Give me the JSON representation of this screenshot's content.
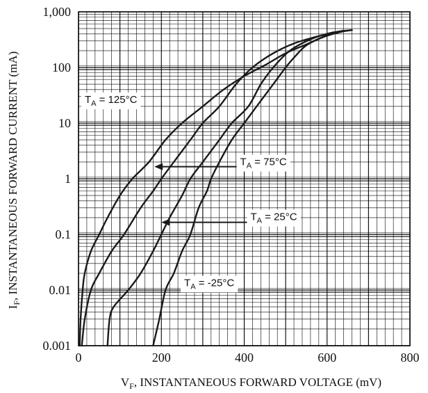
{
  "chart_data": {
    "type": "line",
    "title": "",
    "xlabel": {
      "main": "V",
      "sub": "F",
      "rest": ", INSTANTANEOUS FORWARD VOLTAGE (mV)"
    },
    "ylabel": {
      "main": "I",
      "sub": "F",
      "rest": ", INSTANTANEOUS FORWARD CURRENT (mA)"
    },
    "x_scale": "linear",
    "y_scale": "log",
    "xlim": [
      0,
      800
    ],
    "ylim": [
      0.001,
      1000
    ],
    "grid": true,
    "x_ticks": [
      {
        "value": 0,
        "label": "0"
      },
      {
        "value": 200,
        "label": "200"
      },
      {
        "value": 400,
        "label": "400"
      },
      {
        "value": 600,
        "label": "600"
      },
      {
        "value": 800,
        "label": "800"
      }
    ],
    "y_ticks": [
      {
        "value": 0.001,
        "label": "0.001"
      },
      {
        "value": 0.01,
        "label": "0.01"
      },
      {
        "value": 0.1,
        "label": "0.1"
      },
      {
        "value": 1,
        "label": "1"
      },
      {
        "value": 10,
        "label": "10"
      },
      {
        "value": 100,
        "label": "100"
      },
      {
        "value": 1000,
        "label": "1,000"
      }
    ],
    "series": [
      {
        "name": "T_A = 125°C",
        "label": {
          "main": "T",
          "sub": "A",
          "rest": " = 125°C"
        },
        "points": [
          [
            3,
            0.001
          ],
          [
            5,
            0.003
          ],
          [
            10,
            0.01
          ],
          [
            15,
            0.02
          ],
          [
            30,
            0.05
          ],
          [
            50,
            0.1
          ],
          [
            70,
            0.2
          ],
          [
            100,
            0.5
          ],
          [
            130,
            1
          ],
          [
            170,
            2
          ],
          [
            210,
            5
          ],
          [
            250,
            10
          ],
          [
            300,
            20
          ],
          [
            350,
            40
          ],
          [
            400,
            70
          ],
          [
            450,
            110
          ],
          [
            500,
            180
          ],
          [
            550,
            260
          ],
          [
            600,
            380
          ],
          [
            640,
            460
          ]
        ]
      },
      {
        "name": "T_A = 75°C",
        "label": {
          "main": "T",
          "sub": "A",
          "rest": " = 75°C"
        },
        "points": [
          [
            8,
            0.001
          ],
          [
            15,
            0.003
          ],
          [
            30,
            0.01
          ],
          [
            50,
            0.02
          ],
          [
            80,
            0.05
          ],
          [
            110,
            0.1
          ],
          [
            150,
            0.3
          ],
          [
            180,
            0.6
          ],
          [
            200,
            1
          ],
          [
            230,
            2
          ],
          [
            270,
            5
          ],
          [
            300,
            10
          ],
          [
            340,
            20
          ],
          [
            380,
            50
          ],
          [
            420,
            100
          ],
          [
            470,
            180
          ],
          [
            520,
            270
          ],
          [
            570,
            350
          ],
          [
            620,
            430
          ],
          [
            650,
            460
          ]
        ]
      },
      {
        "name": "T_A = 25°C",
        "label": {
          "main": "T",
          "sub": "A",
          "rest": " = 25°C"
        },
        "points": [
          [
            70,
            0.001
          ],
          [
            75,
            0.003
          ],
          [
            85,
            0.005
          ],
          [
            120,
            0.01
          ],
          [
            150,
            0.02
          ],
          [
            180,
            0.05
          ],
          [
            200,
            0.1
          ],
          [
            220,
            0.2
          ],
          [
            250,
            0.5
          ],
          [
            270,
            1
          ],
          [
            300,
            2
          ],
          [
            340,
            5
          ],
          [
            370,
            10
          ],
          [
            410,
            20
          ],
          [
            440,
            50
          ],
          [
            470,
            100
          ],
          [
            510,
            200
          ],
          [
            560,
            320
          ],
          [
            610,
            420
          ],
          [
            660,
            470
          ]
        ]
      },
      {
        "name": "T_A = -25°C",
        "label": {
          "main": "T",
          "sub": "A",
          "rest": " = -25°C"
        },
        "points": [
          [
            180,
            0.001
          ],
          [
            195,
            0.003
          ],
          [
            210,
            0.01
          ],
          [
            230,
            0.02
          ],
          [
            250,
            0.05
          ],
          [
            270,
            0.1
          ],
          [
            290,
            0.3
          ],
          [
            310,
            0.6
          ],
          [
            320,
            1
          ],
          [
            340,
            2
          ],
          [
            370,
            5
          ],
          [
            400,
            10
          ],
          [
            430,
            20
          ],
          [
            470,
            50
          ],
          [
            500,
            100
          ],
          [
            520,
            150
          ],
          [
            550,
            250
          ],
          [
            590,
            350
          ],
          [
            630,
            430
          ],
          [
            660,
            470
          ]
        ]
      }
    ],
    "annotations": [
      {
        "series": 0,
        "label": {
          "main": "T",
          "sub": "A",
          "rest": " = 125°C"
        },
        "arrow": false
      },
      {
        "series": 1,
        "label": {
          "main": "T",
          "sub": "A",
          "rest": " = 75°C"
        },
        "arrow": true
      },
      {
        "series": 2,
        "label": {
          "main": "T",
          "sub": "A",
          "rest": " = 25°C"
        },
        "arrow": true
      },
      {
        "series": 3,
        "label": {
          "main": "T",
          "sub": "A",
          "rest": " = -25°C"
        },
        "arrow": false
      }
    ]
  }
}
